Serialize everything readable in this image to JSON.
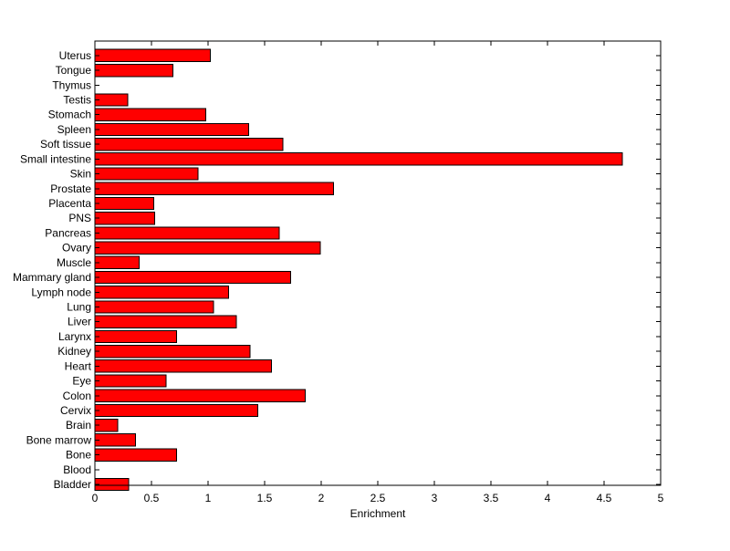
{
  "chart_data": {
    "type": "bar",
    "orientation": "horizontal",
    "title": "",
    "xlabel": "Enrichment",
    "ylabel": "",
    "xlim": [
      0,
      5
    ],
    "xticks": [
      "0",
      "0.5",
      "1",
      "1.5",
      "2",
      "2.5",
      "3",
      "3.5",
      "4",
      "4.5",
      "5"
    ],
    "grid": false,
    "bar_color": "#ff0000",
    "categories": [
      "Bladder",
      "Blood",
      "Bone",
      "Bone marrow",
      "Brain",
      "Cervix",
      "Colon",
      "Eye",
      "Heart",
      "Kidney",
      "Larynx",
      "Liver",
      "Lung",
      "Lymph node",
      "Mammary gland",
      "Muscle",
      "Ovary",
      "Pancreas",
      "PNS",
      "Placenta",
      "Prostate",
      "Skin",
      "Small intestine",
      "Soft tissue",
      "Spleen",
      "Stomach",
      "Testis",
      "Thymus",
      "Tongue",
      "Uterus"
    ],
    "values": [
      0.3,
      0.0,
      0.72,
      0.36,
      0.2,
      1.44,
      1.86,
      0.63,
      1.56,
      1.37,
      0.72,
      1.25,
      1.05,
      1.18,
      1.73,
      0.39,
      1.99,
      1.63,
      0.53,
      0.52,
      2.11,
      0.91,
      4.66,
      1.66,
      1.36,
      0.98,
      0.29,
      0.0,
      0.69,
      1.02
    ]
  }
}
